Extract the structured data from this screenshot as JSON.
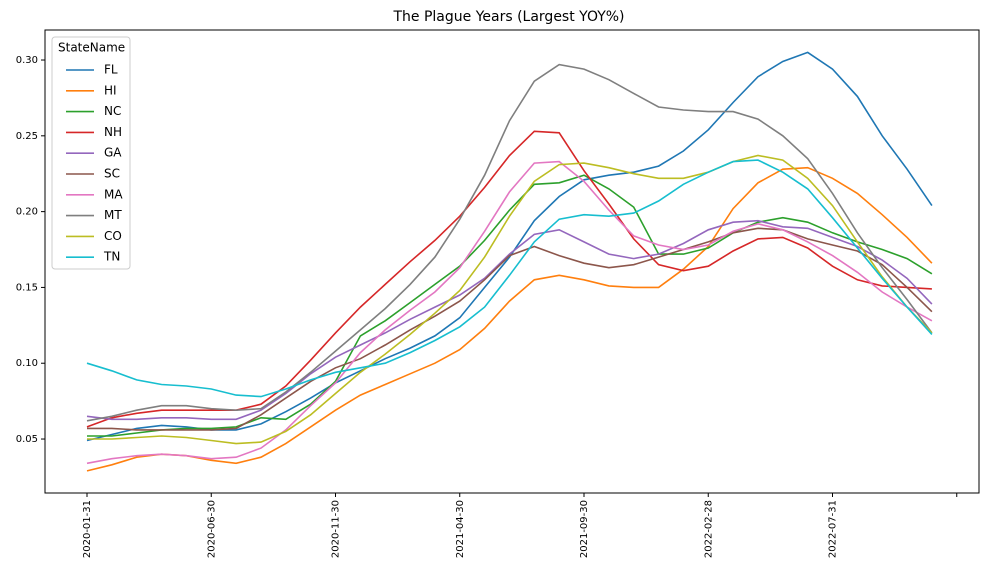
{
  "chart_data": {
    "type": "line",
    "title": "The Plague Years (Largest YOY%)",
    "categories": [
      "2020-01-31",
      null,
      null,
      null,
      null,
      "2020-06-30",
      null,
      null,
      null,
      null,
      "2020-11-30",
      null,
      null,
      null,
      null,
      "2021-04-30",
      null,
      null,
      null,
      null,
      "2021-09-30",
      null,
      null,
      null,
      null,
      "2022-02-28",
      null,
      null,
      null,
      null,
      "2022-07-31",
      null,
      null,
      null,
      null,
      null
    ],
    "series": [
      {
        "name": "FL",
        "color": "#1f77b4",
        "values": [
          0.049,
          0.053,
          0.057,
          0.059,
          0.058,
          0.056,
          0.056,
          0.06,
          0.068,
          0.077,
          0.087,
          0.095,
          0.103,
          0.11,
          0.118,
          0.13,
          0.15,
          0.17,
          0.194,
          0.21,
          0.221,
          0.224,
          0.226,
          0.23,
          0.24,
          0.254,
          0.272,
          0.289,
          0.299,
          0.305,
          0.294,
          0.276,
          0.25,
          0.228,
          0.204,
          null
        ]
      },
      {
        "name": "HI",
        "color": "#ff7f0e",
        "values": [
          0.029,
          0.033,
          0.038,
          0.04,
          0.039,
          0.036,
          0.034,
          0.038,
          0.047,
          0.058,
          0.069,
          0.079,
          0.086,
          0.093,
          0.1,
          0.109,
          0.123,
          0.141,
          0.155,
          0.158,
          0.155,
          0.151,
          0.15,
          0.15,
          0.162,
          0.177,
          0.202,
          0.219,
          0.228,
          0.229,
          0.222,
          0.212,
          0.198,
          0.183,
          0.166,
          null
        ]
      },
      {
        "name": "NC",
        "color": "#2ca02c",
        "values": [
          0.052,
          0.052,
          0.054,
          0.056,
          0.057,
          0.057,
          0.058,
          0.064,
          0.063,
          0.073,
          0.088,
          0.118,
          0.128,
          0.14,
          0.152,
          0.164,
          0.181,
          0.201,
          0.218,
          0.219,
          0.224,
          0.215,
          0.203,
          0.172,
          0.172,
          0.176,
          0.186,
          0.193,
          0.196,
          0.193,
          0.186,
          0.18,
          0.175,
          0.169,
          0.159,
          null
        ]
      },
      {
        "name": "NH",
        "color": "#d62728",
        "values": [
          0.058,
          0.064,
          0.067,
          0.069,
          0.069,
          0.069,
          0.069,
          0.073,
          0.085,
          0.102,
          0.12,
          0.137,
          0.152,
          0.167,
          0.181,
          0.197,
          0.216,
          0.237,
          0.253,
          0.252,
          0.227,
          0.205,
          0.182,
          0.165,
          0.161,
          0.164,
          0.174,
          0.182,
          0.183,
          0.176,
          0.164,
          0.155,
          0.151,
          0.15,
          0.149,
          null
        ]
      },
      {
        "name": "GA",
        "color": "#9467bd",
        "values": [
          0.065,
          0.063,
          0.063,
          0.064,
          0.064,
          0.063,
          0.063,
          0.069,
          0.08,
          0.093,
          0.104,
          0.112,
          0.12,
          0.129,
          0.137,
          0.145,
          0.156,
          0.172,
          0.185,
          0.188,
          0.18,
          0.172,
          0.169,
          0.172,
          0.179,
          0.188,
          0.193,
          0.194,
          0.19,
          0.189,
          0.183,
          0.177,
          0.168,
          0.156,
          0.139,
          null
        ]
      },
      {
        "name": "SC",
        "color": "#8c564b",
        "values": [
          0.057,
          0.057,
          0.056,
          0.056,
          0.056,
          0.056,
          0.057,
          0.066,
          0.077,
          0.088,
          0.097,
          0.103,
          0.112,
          0.122,
          0.131,
          0.141,
          0.155,
          0.171,
          0.177,
          0.171,
          0.166,
          0.163,
          0.165,
          0.17,
          0.175,
          0.18,
          0.186,
          0.189,
          0.188,
          0.182,
          0.178,
          0.174,
          0.165,
          0.15,
          0.134,
          null
        ]
      },
      {
        "name": "MA",
        "color": "#e377c2",
        "values": [
          0.034,
          0.037,
          0.039,
          0.04,
          0.039,
          0.037,
          0.038,
          0.044,
          0.056,
          0.072,
          0.087,
          0.107,
          0.122,
          0.135,
          0.147,
          0.163,
          0.187,
          0.213,
          0.232,
          0.233,
          0.22,
          0.201,
          0.184,
          0.178,
          0.175,
          0.178,
          0.187,
          0.192,
          0.188,
          0.18,
          0.171,
          0.16,
          0.147,
          0.137,
          0.128,
          null
        ]
      },
      {
        "name": "MT",
        "color": "#7f7f7f",
        "values": [
          0.062,
          0.065,
          0.069,
          0.072,
          0.072,
          0.07,
          0.069,
          0.07,
          0.081,
          0.094,
          0.108,
          0.122,
          0.136,
          0.152,
          0.17,
          0.195,
          0.224,
          0.26,
          0.286,
          0.297,
          0.294,
          0.287,
          0.278,
          0.269,
          0.267,
          0.266,
          0.266,
          0.261,
          0.25,
          0.235,
          0.212,
          0.186,
          0.163,
          0.142,
          0.12,
          null
        ]
      },
      {
        "name": "CO",
        "color": "#bcbd22",
        "values": [
          0.05,
          0.05,
          0.051,
          0.052,
          0.051,
          0.049,
          0.047,
          0.048,
          0.055,
          0.066,
          0.08,
          0.094,
          0.106,
          0.119,
          0.133,
          0.148,
          0.17,
          0.197,
          0.22,
          0.231,
          0.232,
          0.229,
          0.225,
          0.222,
          0.222,
          0.226,
          0.233,
          0.237,
          0.234,
          0.222,
          0.204,
          0.18,
          0.157,
          0.137,
          0.12,
          null
        ]
      },
      {
        "name": "TN",
        "color": "#17becf",
        "values": [
          0.1,
          0.095,
          0.089,
          0.086,
          0.085,
          0.083,
          0.079,
          0.078,
          0.083,
          0.089,
          0.094,
          0.097,
          0.1,
          0.107,
          0.115,
          0.124,
          0.137,
          0.158,
          0.18,
          0.195,
          0.198,
          0.197,
          0.199,
          0.207,
          0.218,
          0.226,
          0.233,
          0.234,
          0.226,
          0.215,
          0.196,
          0.176,
          0.156,
          0.137,
          0.119,
          null
        ]
      }
    ],
    "ylim": [
      0.0144,
      0.3198
    ],
    "yticks": [
      0.05,
      {
        "value": 0.1,
        "label": "0.10"
      },
      0.15,
      {
        "value": 0.2,
        "label": "0.20"
      },
      0.25,
      {
        "value": 0.3,
        "label": "0.30"
      }
    ],
    "grid": false,
    "legend_title": "StateName",
    "legend": "upper left"
  }
}
